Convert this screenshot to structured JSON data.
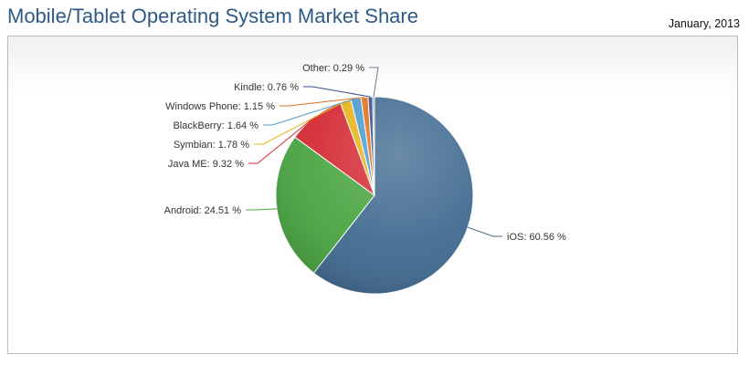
{
  "header": {
    "title": "Mobile/Tablet Operating System Market Share",
    "date": "January, 2013"
  },
  "chart_data": {
    "type": "pie",
    "title": "Mobile/Tablet Operating System Market Share",
    "subtitle": "January, 2013",
    "slices": [
      {
        "name": "iOS",
        "value": 60.56,
        "label": "iOS: 60.56 %",
        "color": "#426b91"
      },
      {
        "name": "Android",
        "value": 24.51,
        "label": "Android: 24.51 %",
        "color": "#4aa542"
      },
      {
        "name": "Java ME",
        "value": 9.32,
        "label": "Java ME: 9.32 %",
        "color": "#d42a33"
      },
      {
        "name": "Symbian",
        "value": 1.78,
        "label": "Symbian: 1.78 %",
        "color": "#e8b41a"
      },
      {
        "name": "BlackBerry",
        "value": 1.64,
        "label": "BlackBerry: 1.64 %",
        "color": "#4c9bcf"
      },
      {
        "name": "Windows Phone",
        "value": 1.15,
        "label": "Windows Phone: 1.15 %",
        "color": "#e0701f"
      },
      {
        "name": "Kindle",
        "value": 0.76,
        "label": "Kindle: 0.76 %",
        "color": "#3a4d8c"
      },
      {
        "name": "Other",
        "value": 0.29,
        "label": "Other: 0.29 %",
        "color": "#6f7c8e"
      }
    ]
  }
}
